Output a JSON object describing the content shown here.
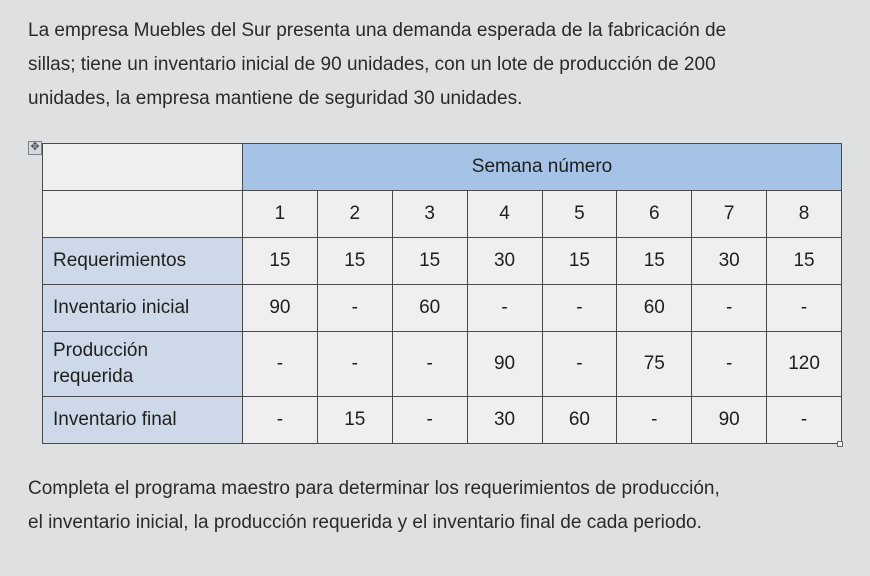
{
  "intro": {
    "line1": "La empresa Muebles del Sur presenta una demanda esperada de la fabricación de",
    "line2": "sillas; tiene un inventario inicial de 90 unidades, con un lote de producción de 200",
    "line3": "unidades, la empresa mantiene de seguridad 30 unidades."
  },
  "table": {
    "span_header": "Semana número",
    "week_labels": [
      "1",
      "2",
      "3",
      "4",
      "5",
      "6",
      "7",
      "8"
    ],
    "rows": {
      "requerimientos": {
        "label": "Requerimientos",
        "cells": [
          "15",
          "15",
          "15",
          "30",
          "15",
          "15",
          "30",
          "15"
        ]
      },
      "inv_inicial": {
        "label": "Inventario inicial",
        "cells": [
          "90",
          "-",
          "60",
          "-",
          "-",
          "60",
          "-",
          "-"
        ]
      },
      "produccion": {
        "label_line1": "Producción",
        "label_line2": "requerida",
        "cells": [
          "-",
          "-",
          "-",
          "90",
          "-",
          "75",
          "-",
          "120"
        ]
      },
      "inv_final": {
        "label": "Inventario final",
        "cells": [
          "-",
          "15",
          "-",
          "30",
          "60",
          "-",
          "90",
          "-"
        ]
      }
    }
  },
  "footer": {
    "line1": "Completa el programa maestro para determinar los requerimientos de producción,",
    "line2": "el inventario inicial, la producción requerida y el inventario final de cada periodo."
  },
  "handle_glyph": "✥"
}
